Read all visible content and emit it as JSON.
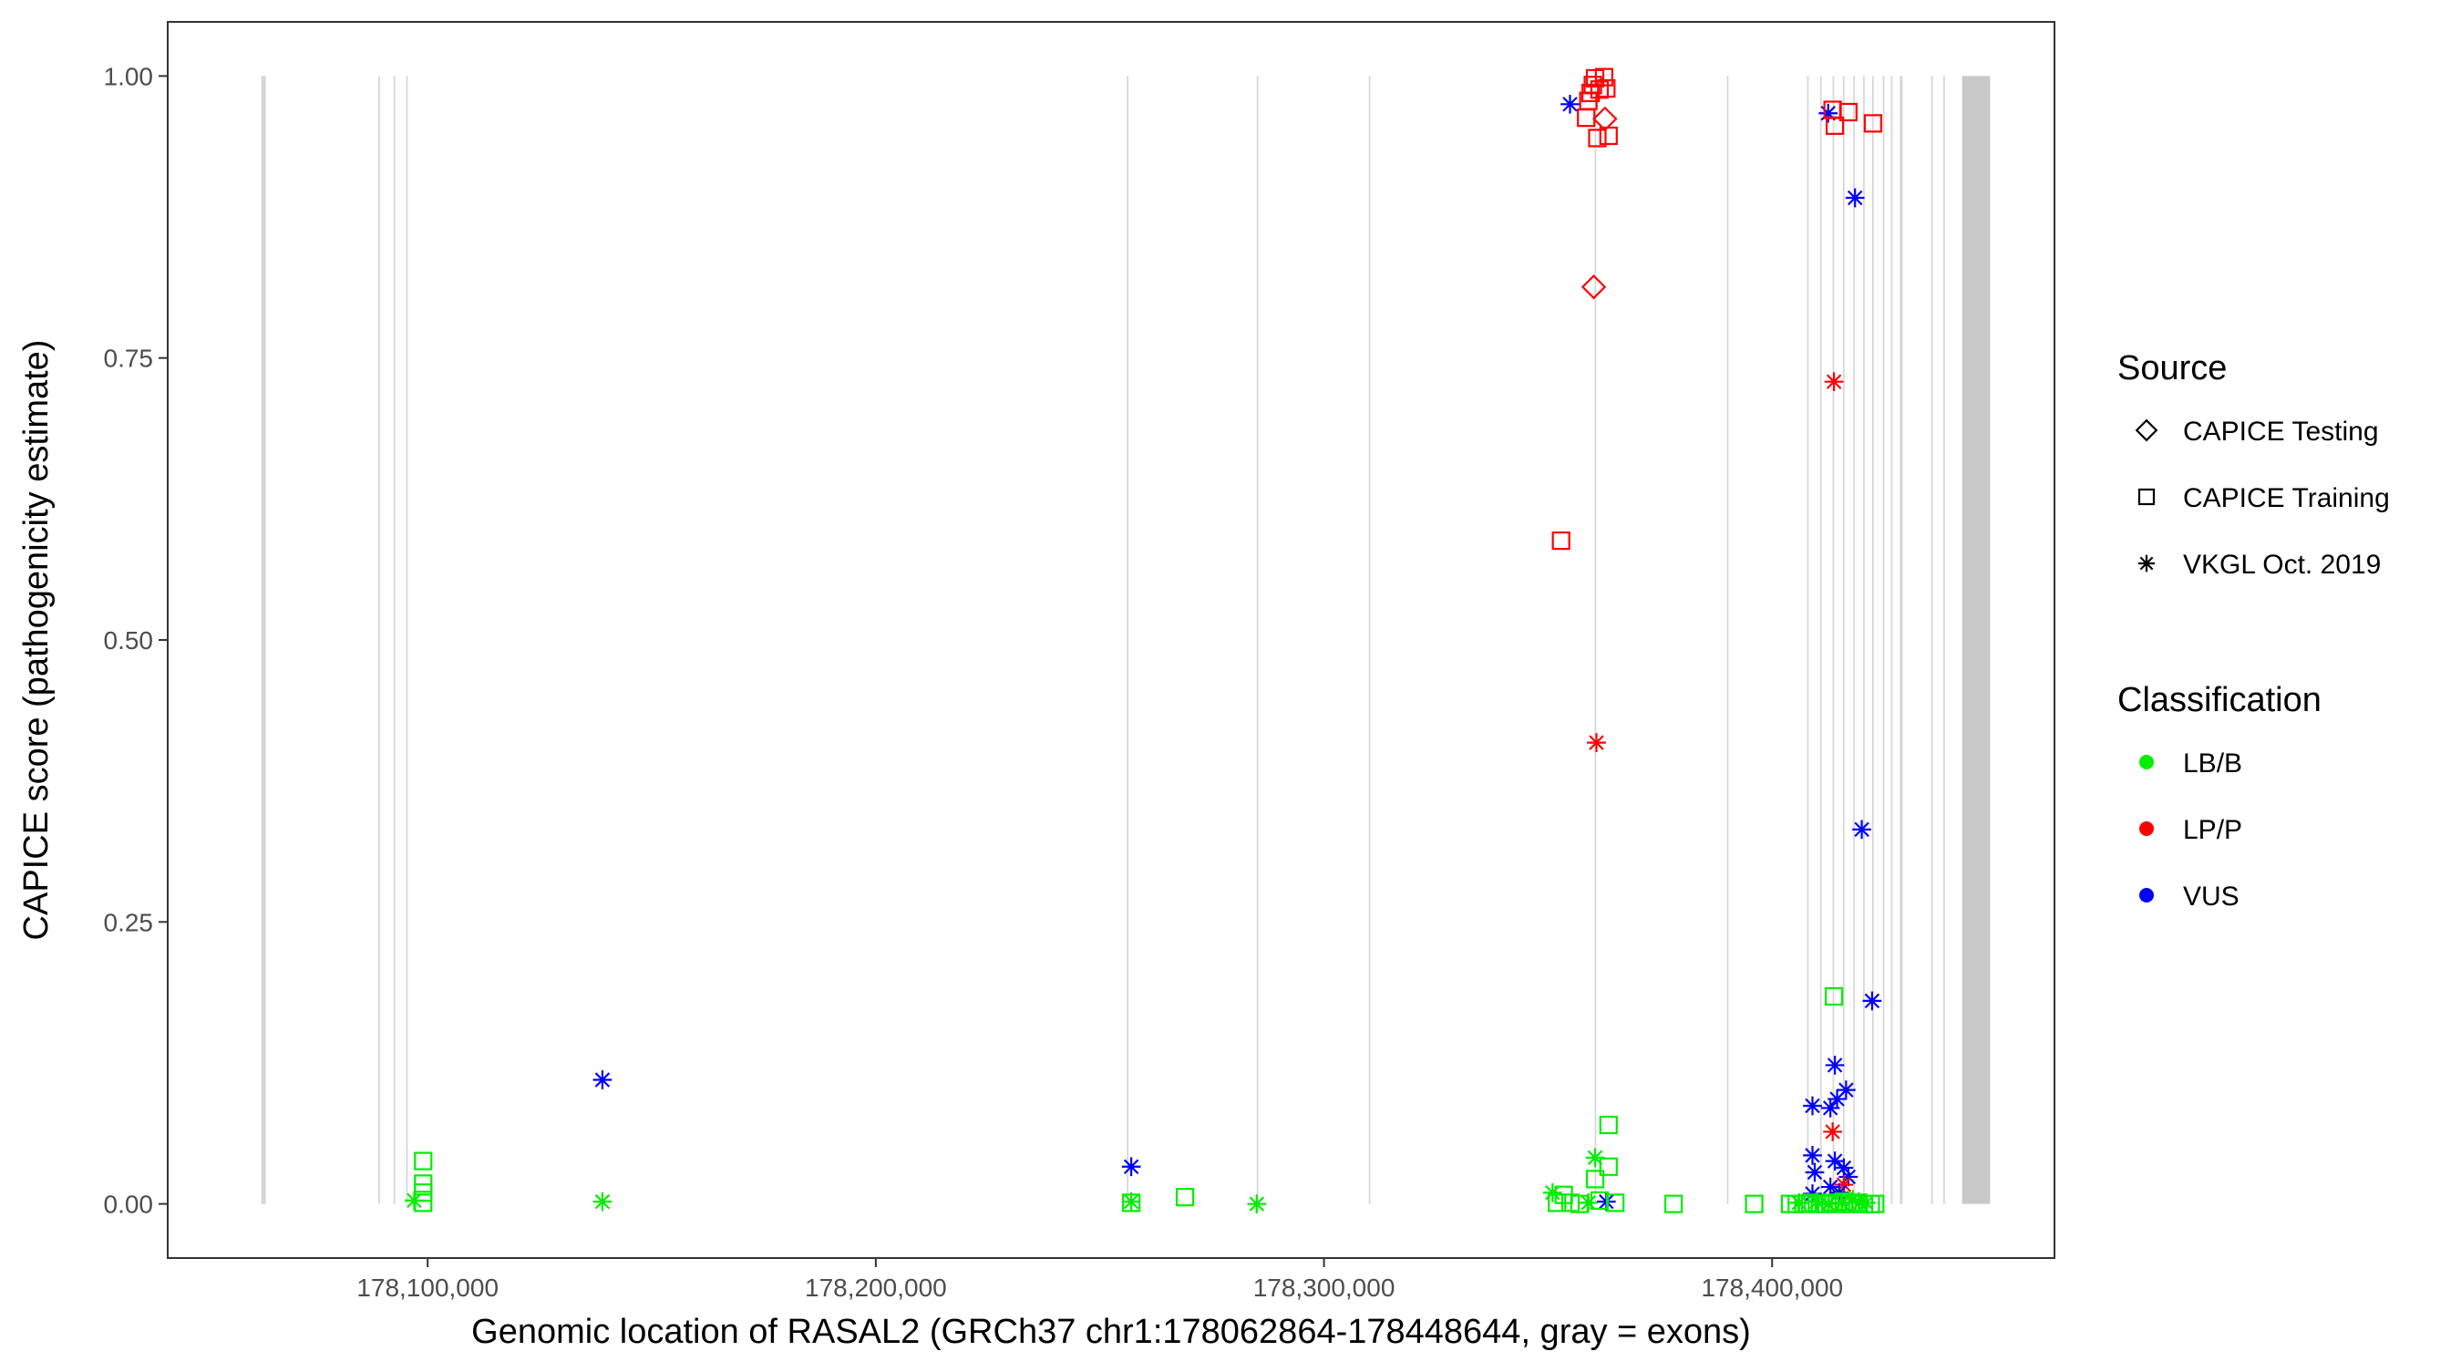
{
  "chart_data": {
    "type": "scatter",
    "xlabel": "Genomic location of RASAL2 (GRCh37 chr1:178062864-178448644, gray = exons)",
    "ylabel": "CAPICE score (pathogenicity estimate)",
    "xlim": [
      178042000,
      178463000
    ],
    "ylim": [
      -0.048,
      1.048
    ],
    "x_ticks": [
      {
        "value": 178100000,
        "label": "178,100,000"
      },
      {
        "value": 178200000,
        "label": "178,200,000"
      },
      {
        "value": 178300000,
        "label": "178,300,000"
      },
      {
        "value": 178400000,
        "label": "178,400,000"
      }
    ],
    "y_ticks": [
      {
        "value": 0.0,
        "label": "0.00"
      },
      {
        "value": 0.25,
        "label": "0.25"
      },
      {
        "value": 0.5,
        "label": "0.50"
      },
      {
        "value": 0.75,
        "label": "0.75"
      },
      {
        "value": 1.0,
        "label": "1.00"
      }
    ],
    "exons": [
      {
        "start": 178062864,
        "end": 178063900
      },
      {
        "start": 178089000,
        "end": 178089350
      },
      {
        "start": 178092400,
        "end": 178092750
      },
      {
        "start": 178095200,
        "end": 178095550
      },
      {
        "start": 178256000,
        "end": 178256350
      },
      {
        "start": 178285000,
        "end": 178285350
      },
      {
        "start": 178310000,
        "end": 178310350
      },
      {
        "start": 178360400,
        "end": 178360750
      },
      {
        "start": 178389900,
        "end": 178390250
      },
      {
        "start": 178407800,
        "end": 178408150
      },
      {
        "start": 178410700,
        "end": 178411050
      },
      {
        "start": 178413500,
        "end": 178413850
      },
      {
        "start": 178415800,
        "end": 178416150
      },
      {
        "start": 178418100,
        "end": 178418450
      },
      {
        "start": 178420300,
        "end": 178420650
      },
      {
        "start": 178422300,
        "end": 178422650
      },
      {
        "start": 178424700,
        "end": 178425050
      },
      {
        "start": 178426500,
        "end": 178426850
      },
      {
        "start": 178428500,
        "end": 178429100
      },
      {
        "start": 178435500,
        "end": 178435850
      },
      {
        "start": 178438200,
        "end": 178438550
      },
      {
        "start": 178442400,
        "end": 178448644
      }
    ],
    "legend": {
      "position": "right",
      "source": {
        "title": "Source",
        "items": [
          {
            "shape": "diamond",
            "label": "CAPICE Testing"
          },
          {
            "shape": "square",
            "label": "CAPICE Training"
          },
          {
            "shape": "asterisk",
            "label": "VKGL Oct. 2019"
          }
        ]
      },
      "classification": {
        "title": "Classification",
        "items": [
          {
            "key": "LB/B",
            "label": "LB/B",
            "color": "#00ee00"
          },
          {
            "key": "LP/P",
            "label": "LP/P",
            "color": "#ff0000"
          },
          {
            "key": "VUS",
            "label": "VUS",
            "color": "#0000ff"
          }
        ]
      }
    },
    "points": [
      {
        "x": 178354900,
        "y": 0.975,
        "shape": "asterisk",
        "class": "VUS"
      },
      {
        "x": 178358500,
        "y": 0.963,
        "shape": "square",
        "class": "LP/P"
      },
      {
        "x": 178359000,
        "y": 0.978,
        "shape": "square",
        "class": "LP/P"
      },
      {
        "x": 178359500,
        "y": 0.985,
        "shape": "square",
        "class": "LP/P"
      },
      {
        "x": 178360000,
        "y": 0.992,
        "shape": "square",
        "class": "LP/P"
      },
      {
        "x": 178360500,
        "y": 0.998,
        "shape": "square",
        "class": "LP/P"
      },
      {
        "x": 178361000,
        "y": 0.945,
        "shape": "square",
        "class": "LP/P"
      },
      {
        "x": 178361500,
        "y": 0.988,
        "shape": "square",
        "class": "LP/P"
      },
      {
        "x": 178362500,
        "y": 0.999,
        "shape": "square",
        "class": "LP/P"
      },
      {
        "x": 178363000,
        "y": 0.989,
        "shape": "square",
        "class": "LP/P"
      },
      {
        "x": 178363500,
        "y": 0.947,
        "shape": "square",
        "class": "LP/P"
      },
      {
        "x": 178362700,
        "y": 0.962,
        "shape": "diamond",
        "class": "LP/P"
      },
      {
        "x": 178360200,
        "y": 0.813,
        "shape": "diamond",
        "class": "LP/P"
      },
      {
        "x": 178352900,
        "y": 0.588,
        "shape": "square",
        "class": "LP/P"
      },
      {
        "x": 178360800,
        "y": 0.409,
        "shape": "asterisk",
        "class": "LP/P"
      },
      {
        "x": 178412500,
        "y": 0.967,
        "shape": "asterisk",
        "class": "VUS"
      },
      {
        "x": 178413500,
        "y": 0.97,
        "shape": "square",
        "class": "LP/P"
      },
      {
        "x": 178414000,
        "y": 0.956,
        "shape": "square",
        "class": "LP/P"
      },
      {
        "x": 178417000,
        "y": 0.968,
        "shape": "square",
        "class": "LP/P"
      },
      {
        "x": 178422500,
        "y": 0.958,
        "shape": "square",
        "class": "LP/P"
      },
      {
        "x": 178418500,
        "y": 0.892,
        "shape": "asterisk",
        "class": "VUS"
      },
      {
        "x": 178413800,
        "y": 0.729,
        "shape": "asterisk",
        "class": "LP/P"
      },
      {
        "x": 178420000,
        "y": 0.332,
        "shape": "asterisk",
        "class": "VUS"
      },
      {
        "x": 178413800,
        "y": 0.184,
        "shape": "square",
        "class": "LB/B"
      },
      {
        "x": 178422300,
        "y": 0.18,
        "shape": "asterisk",
        "class": "VUS"
      },
      {
        "x": 178414000,
        "y": 0.123,
        "shape": "asterisk",
        "class": "VUS"
      },
      {
        "x": 178416500,
        "y": 0.101,
        "shape": "asterisk",
        "class": "VUS"
      },
      {
        "x": 178414500,
        "y": 0.093,
        "shape": "asterisk",
        "class": "VUS"
      },
      {
        "x": 178409000,
        "y": 0.087,
        "shape": "asterisk",
        "class": "VUS"
      },
      {
        "x": 178413000,
        "y": 0.085,
        "shape": "asterisk",
        "class": "VUS"
      },
      {
        "x": 178413500,
        "y": 0.064,
        "shape": "asterisk",
        "class": "LP/P"
      },
      {
        "x": 178409000,
        "y": 0.043,
        "shape": "asterisk",
        "class": "VUS"
      },
      {
        "x": 178414000,
        "y": 0.038,
        "shape": "asterisk",
        "class": "VUS"
      },
      {
        "x": 178409500,
        "y": 0.028,
        "shape": "asterisk",
        "class": "VUS"
      },
      {
        "x": 178416000,
        "y": 0.032,
        "shape": "asterisk",
        "class": "VUS"
      },
      {
        "x": 178417000,
        "y": 0.024,
        "shape": "asterisk",
        "class": "VUS"
      },
      {
        "x": 178413000,
        "y": 0.015,
        "shape": "asterisk",
        "class": "VUS"
      },
      {
        "x": 178416000,
        "y": 0.017,
        "shape": "asterisk",
        "class": "LP/P"
      },
      {
        "x": 178415000,
        "y": 0.01,
        "shape": "asterisk",
        "class": "VUS"
      },
      {
        "x": 178409000,
        "y": 0.009,
        "shape": "asterisk",
        "class": "VUS"
      },
      {
        "x": 178363000,
        "y": 0.002,
        "shape": "asterisk",
        "class": "VUS"
      },
      {
        "x": 178257000,
        "y": 0.033,
        "shape": "asterisk",
        "class": "VUS"
      },
      {
        "x": 178139000,
        "y": 0.11,
        "shape": "asterisk",
        "class": "VUS"
      },
      {
        "x": 178097000,
        "y": 0.003,
        "shape": "asterisk",
        "class": "LB/B"
      },
      {
        "x": 178099000,
        "y": 0.038,
        "shape": "square",
        "class": "LB/B"
      },
      {
        "x": 178099000,
        "y": 0.018,
        "shape": "square",
        "class": "LB/B"
      },
      {
        "x": 178099000,
        "y": 0.01,
        "shape": "square",
        "class": "LB/B"
      },
      {
        "x": 178099000,
        "y": 0.001,
        "shape": "square",
        "class": "LB/B"
      },
      {
        "x": 178139000,
        "y": 0.002,
        "shape": "asterisk",
        "class": "LB/B"
      },
      {
        "x": 178257000,
        "y": 0.001,
        "shape": "square",
        "class": "LB/B"
      },
      {
        "x": 178257000,
        "y": 0.002,
        "shape": "asterisk",
        "class": "LB/B"
      },
      {
        "x": 178269000,
        "y": 0.006,
        "shape": "square",
        "class": "LB/B"
      },
      {
        "x": 178285000,
        "y": 0.0,
        "shape": "asterisk",
        "class": "LB/B"
      },
      {
        "x": 178351000,
        "y": 0.01,
        "shape": "asterisk",
        "class": "LB/B"
      },
      {
        "x": 178352000,
        "y": 0.001,
        "shape": "square",
        "class": "LB/B"
      },
      {
        "x": 178353500,
        "y": 0.008,
        "shape": "square",
        "class": "LB/B"
      },
      {
        "x": 178355000,
        "y": 0.001,
        "shape": "square",
        "class": "LB/B"
      },
      {
        "x": 178357000,
        "y": 0.0,
        "shape": "square",
        "class": "LB/B"
      },
      {
        "x": 178359000,
        "y": 0.001,
        "shape": "asterisk",
        "class": "LB/B"
      },
      {
        "x": 178360500,
        "y": 0.041,
        "shape": "asterisk",
        "class": "LB/B"
      },
      {
        "x": 178360500,
        "y": 0.022,
        "shape": "square",
        "class": "LB/B"
      },
      {
        "x": 178361500,
        "y": 0.003,
        "shape": "square",
        "class": "LB/B"
      },
      {
        "x": 178363500,
        "y": 0.07,
        "shape": "square",
        "class": "LB/B"
      },
      {
        "x": 178363500,
        "y": 0.033,
        "shape": "square",
        "class": "LB/B"
      },
      {
        "x": 178365000,
        "y": 0.001,
        "shape": "square",
        "class": "LB/B"
      },
      {
        "x": 178378000,
        "y": 0.0,
        "shape": "square",
        "class": "LB/B"
      },
      {
        "x": 178396000,
        "y": 0.0,
        "shape": "square",
        "class": "LB/B"
      },
      {
        "x": 178404000,
        "y": 0.0,
        "shape": "square",
        "class": "LB/B"
      },
      {
        "x": 178405500,
        "y": 0.0,
        "shape": "square",
        "class": "LB/B"
      },
      {
        "x": 178407000,
        "y": 0.0,
        "shape": "square",
        "class": "LB/B"
      },
      {
        "x": 178408500,
        "y": 0.001,
        "shape": "square",
        "class": "LB/B"
      },
      {
        "x": 178410000,
        "y": 0.0,
        "shape": "square",
        "class": "LB/B"
      },
      {
        "x": 178411500,
        "y": 0.0,
        "shape": "square",
        "class": "LB/B"
      },
      {
        "x": 178413000,
        "y": 0.001,
        "shape": "square",
        "class": "LB/B"
      },
      {
        "x": 178414500,
        "y": 0.0,
        "shape": "square",
        "class": "LB/B"
      },
      {
        "x": 178416000,
        "y": 0.002,
        "shape": "square",
        "class": "LB/B"
      },
      {
        "x": 178417500,
        "y": 0.0,
        "shape": "square",
        "class": "LB/B"
      },
      {
        "x": 178419000,
        "y": 0.001,
        "shape": "square",
        "class": "LB/B"
      },
      {
        "x": 178420500,
        "y": 0.0,
        "shape": "square",
        "class": "LB/B"
      },
      {
        "x": 178422000,
        "y": 0.0,
        "shape": "square",
        "class": "LB/B"
      },
      {
        "x": 178423000,
        "y": 0.0,
        "shape": "square",
        "class": "LB/B"
      },
      {
        "x": 178406000,
        "y": 0.001,
        "shape": "asterisk",
        "class": "LB/B"
      },
      {
        "x": 178410000,
        "y": 0.002,
        "shape": "asterisk",
        "class": "LB/B"
      },
      {
        "x": 178412500,
        "y": 0.0,
        "shape": "asterisk",
        "class": "LB/B"
      },
      {
        "x": 178415500,
        "y": 0.001,
        "shape": "asterisk",
        "class": "LB/B"
      },
      {
        "x": 178418000,
        "y": 0.004,
        "shape": "asterisk",
        "class": "LB/B"
      },
      {
        "x": 178419500,
        "y": 0.001,
        "shape": "asterisk",
        "class": "LB/B"
      },
      {
        "x": 178421000,
        "y": 0.001,
        "shape": "asterisk",
        "class": "LB/B"
      }
    ]
  }
}
